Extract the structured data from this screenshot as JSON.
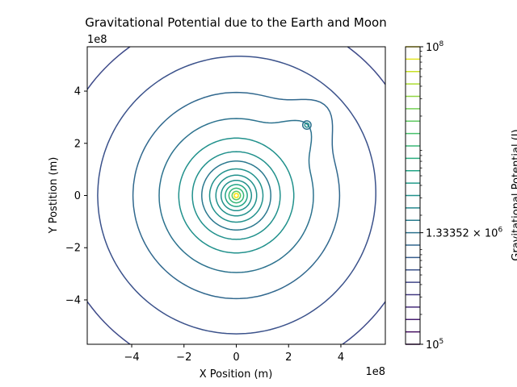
{
  "chart_data": {
    "type": "contour",
    "title": "Gravitational Potential due to the Earth and Moon",
    "xlabel": "X Position (m)",
    "ylabel": "Y Postition (m)",
    "x_offset_label": "1e8",
    "y_offset_label": "1e8",
    "xlim": [
      -5.7,
      5.7
    ],
    "ylim": [
      -5.7,
      5.7
    ],
    "axis_units_scale": 100000000,
    "x_ticks": [
      {
        "v": -4,
        "label": "−4"
      },
      {
        "v": -2,
        "label": "−2"
      },
      {
        "v": 0,
        "label": "0"
      },
      {
        "v": 2,
        "label": "2"
      },
      {
        "v": 4,
        "label": "4"
      }
    ],
    "y_ticks": [
      {
        "v": 4,
        "label": "4"
      },
      {
        "v": 2,
        "label": "2"
      },
      {
        "v": 0,
        "label": "0"
      },
      {
        "v": -2,
        "label": "−2"
      },
      {
        "v": -4,
        "label": "−4"
      }
    ],
    "grid": false,
    "colormap": "viridis",
    "colorbar": {
      "label": "Gravitational Potential (J)",
      "scale": "log",
      "min": 100000,
      "max": 100000000,
      "labels": [
        {
          "value": 100000000,
          "base": "10",
          "exp": "8"
        },
        {
          "value": 1333520,
          "base": "1.33352 × 10",
          "exp": "6"
        },
        {
          "value": 100000,
          "base": "10",
          "exp": "5"
        }
      ],
      "level_count": 25
    },
    "bodies": [
      {
        "name": "Earth",
        "x": 0,
        "y": 0
      },
      {
        "name": "Moon",
        "x": 2.7,
        "y": 2.7
      }
    ],
    "contours": [
      {
        "radius": 0.08,
        "color": "#fde725"
      },
      {
        "radius": 0.16,
        "color": "#5ec962"
      },
      {
        "radius": 0.28,
        "color": "#35b779"
      },
      {
        "radius": 0.42,
        "color": "#21a585"
      },
      {
        "radius": 0.58,
        "color": "#21918c"
      },
      {
        "radius": 0.78,
        "color": "#21918c"
      },
      {
        "radius": 1.02,
        "color": "#21918c"
      },
      {
        "radius": 1.32,
        "color": "#2a788e"
      },
      {
        "radius": 1.68,
        "color": "#21918c"
      },
      {
        "radius": 2.2,
        "color": "#21918c"
      },
      {
        "radius": 2.95,
        "color": "#2c728e"
      },
      {
        "radius": 3.95,
        "color": "#31688e"
      },
      {
        "radius": 5.3,
        "color": "#3b528b"
      },
      {
        "radius": 7.0,
        "color": "#3e4a89"
      }
    ],
    "moon_contours": [
      {
        "radius": 0.16,
        "color": "#2c728e"
      },
      {
        "radius": 0.08,
        "color": "#21918c"
      }
    ]
  }
}
